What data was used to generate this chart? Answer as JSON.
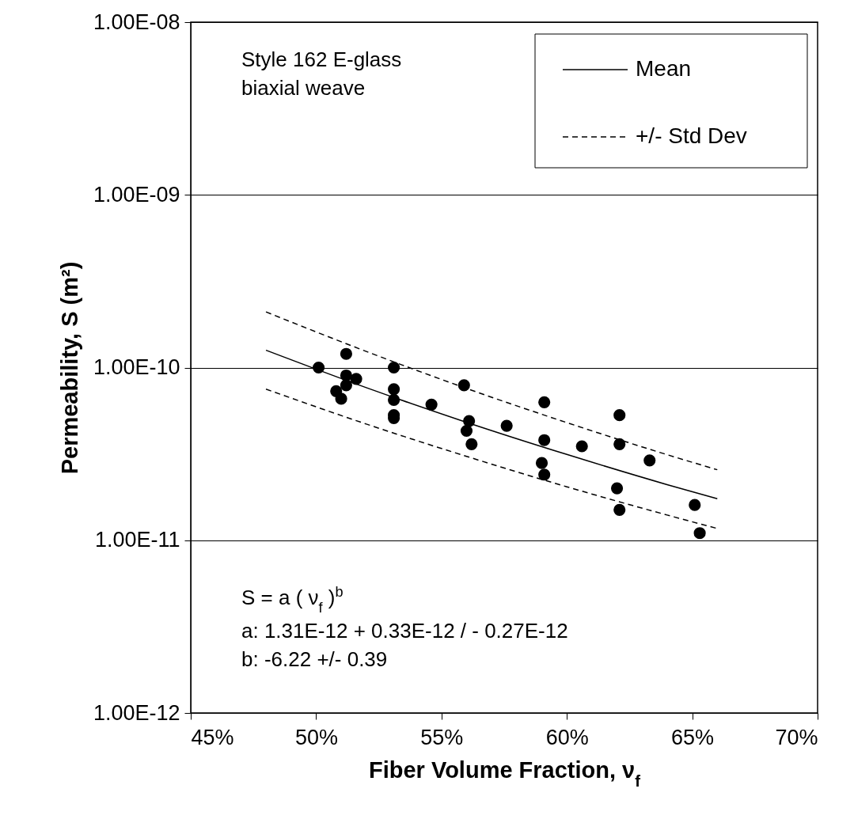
{
  "chart_data": {
    "type": "scatter",
    "xlabel": "Fiber Volume Fraction, ν$_{f}$",
    "ylabel": "Permeability, S (m²)",
    "log": "y",
    "grid": "y",
    "legend": "top right",
    "xlim": [
      45,
      70
    ],
    "xticks": [
      {
        "value": 45,
        "label": "45%"
      },
      {
        "value": 50,
        "label": "50%"
      },
      {
        "value": 55,
        "label": "55%"
      },
      {
        "value": 60,
        "label": "60%"
      },
      {
        "value": 65,
        "label": "65%"
      },
      {
        "value": 70,
        "label": "70%"
      }
    ],
    "ylim": [
      1e-12,
      1e-08
    ],
    "yticks": [
      {
        "value": 1e-12,
        "label": "1.00E-12"
      },
      {
        "value": 1e-11,
        "label": "1.00E-11"
      },
      {
        "value": 1e-10,
        "label": "1.00E-10"
      },
      {
        "value": 1e-09,
        "label": "1.00E-09"
      },
      {
        "value": 1e-08,
        "label": "1.00E-08"
      }
    ],
    "series": [
      {
        "marker": "circle",
        "color": "#000000",
        "x": [
          50.1,
          51.2,
          51.2,
          51.6,
          51.2,
          50.8,
          51.0,
          53.1,
          53.1,
          53.1,
          53.1,
          53.1,
          54.6,
          55.9,
          56.1,
          56.0,
          56.2,
          57.6,
          59.1,
          59.1,
          60.6,
          62.1,
          62.1,
          63.3,
          59.0,
          59.1,
          62.0,
          62.1,
          65.1,
          65.3
        ],
        "values": [
          1e-10,
          1.2e-10,
          9e-11,
          8.6e-11,
          7.9e-11,
          7.3e-11,
          6.6e-11,
          1e-10,
          7.5e-11,
          6.5e-11,
          5.3e-11,
          5.1e-11,
          6.1e-11,
          7.9e-11,
          4.9e-11,
          4.3e-11,
          3.6e-11,
          4.6e-11,
          6.3e-11,
          3.8e-11,
          3.5e-11,
          5.3e-11,
          3.6e-11,
          2.9e-11,
          2.8e-11,
          2.4e-11,
          2e-11,
          1.5e-11,
          1.6e-11,
          1.1e-11
        ]
      },
      {
        "type": "line",
        "name": "Mean",
        "color": "#000000",
        "line_style": "solid",
        "x": [
          48,
          52,
          56,
          60,
          64,
          66
        ],
        "values": [
          1.26e-10,
          7.65e-11,
          4.82e-11,
          3.14e-11,
          2.1e-11,
          1.74e-11
        ]
      },
      {
        "type": "line",
        "name": "+/- Std Dev",
        "color": "#000000",
        "line_style": "dashed",
        "x": [
          48,
          52,
          56,
          60,
          64,
          66
        ],
        "values": [
          2.1e-10,
          1.24e-10,
          7.57e-11,
          4.8e-11,
          3.13e-11,
          2.56e-11
        ]
      },
      {
        "type": "line",
        "color": "#000000",
        "line_style": "dashed",
        "x": [
          48,
          52,
          56,
          60,
          64,
          66
        ],
        "values": [
          7.5e-11,
          4.71e-11,
          3.06e-11,
          2.04e-11,
          1.4e-11,
          1.17e-11
        ]
      }
    ],
    "annotations": [
      "Style 162 E-glass",
      "biaxial weave",
      "S = a ( ν$_{f}$ )$^{b}$",
      "a:  1.31E-12 + 0.33E-12 / - 0.27E-12",
      "b:  -6.22 +/- 0.39"
    ]
  }
}
